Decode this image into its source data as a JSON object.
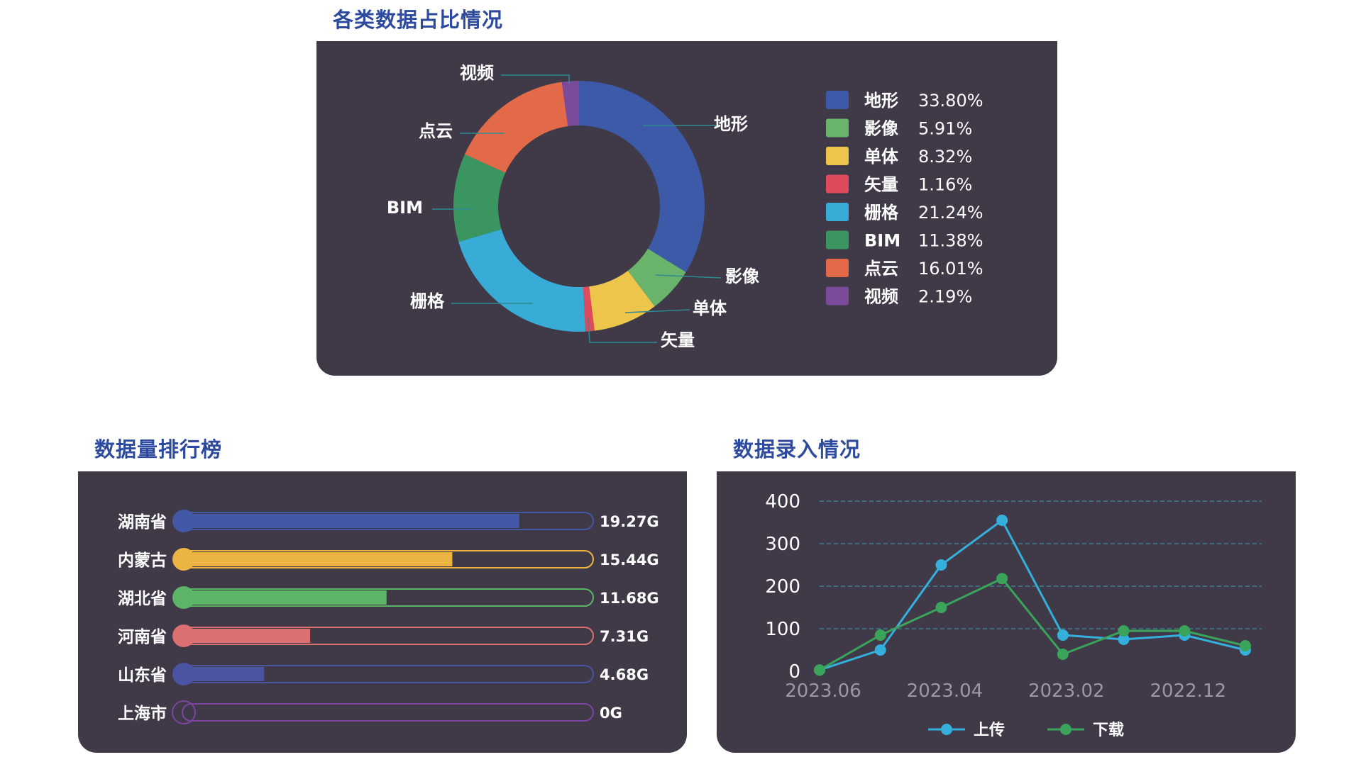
{
  "sections": {
    "pie_title": "各类数据占比情况",
    "ranking_title": "数据量排行榜",
    "line_title": "数据录入情况"
  },
  "chart_data": [
    {
      "type": "pie",
      "variant": "donut",
      "title": "各类数据占比情况",
      "legend_placement": "right",
      "slices": [
        {
          "label": "地形",
          "value": 33.8,
          "value_label": "33.80%",
          "color": "#3d5aa8"
        },
        {
          "label": "影像",
          "value": 5.91,
          "value_label": "5.91%",
          "color": "#6ab36a"
        },
        {
          "label": "单体",
          "value": 8.32,
          "value_label": "8.32%",
          "color": "#ecc54a"
        },
        {
          "label": "矢量",
          "value": 1.16,
          "value_label": "1.16%",
          "color": "#df4a5d"
        },
        {
          "label": "栅格",
          "value": 21.24,
          "value_label": "21.24%",
          "color": "#38acd6"
        },
        {
          "label": "BIM",
          "value": 11.38,
          "value_label": "11.38%",
          "color": "#3b9560"
        },
        {
          "label": "点云",
          "value": 16.01,
          "value_label": "16.01%",
          "color": "#e26a48"
        },
        {
          "label": "视频",
          "value": 2.19,
          "value_label": "2.19%",
          "color": "#7a4b9a"
        }
      ]
    },
    {
      "type": "bar",
      "orientation": "horizontal",
      "title": "数据量排行榜",
      "max": 23.5,
      "categories": [
        "湖南省",
        "内蒙古",
        "湖北省",
        "河南省",
        "山东省",
        "上海市"
      ],
      "values": [
        19.27,
        15.44,
        11.68,
        7.31,
        4.68,
        0
      ],
      "value_labels": [
        "19.27G",
        "15.44G",
        "11.68G",
        "7.31G",
        "4.68G",
        "0G"
      ],
      "colors": [
        "#4458a8",
        "#ecb442",
        "#5cb466",
        "#dc6f6f",
        "#4a54a2",
        "#7c45a0"
      ]
    },
    {
      "type": "line",
      "title": "数据录入情况",
      "x": [
        "2023.06",
        "",
        "2023.04",
        "",
        "2023.02",
        "",
        "2022.12",
        ""
      ],
      "ylim": [
        0,
        400
      ],
      "yticks": [
        0,
        100,
        200,
        300,
        400
      ],
      "grid": true,
      "legend_placement": "bottom",
      "series": [
        {
          "name": "上传",
          "color": "#35b0dc",
          "values": [
            3,
            50,
            250,
            355,
            85,
            75,
            85,
            50
          ]
        },
        {
          "name": "下载",
          "color": "#3aa55a",
          "values": [
            3,
            85,
            150,
            218,
            40,
            95,
            95,
            60
          ]
        }
      ]
    }
  ]
}
